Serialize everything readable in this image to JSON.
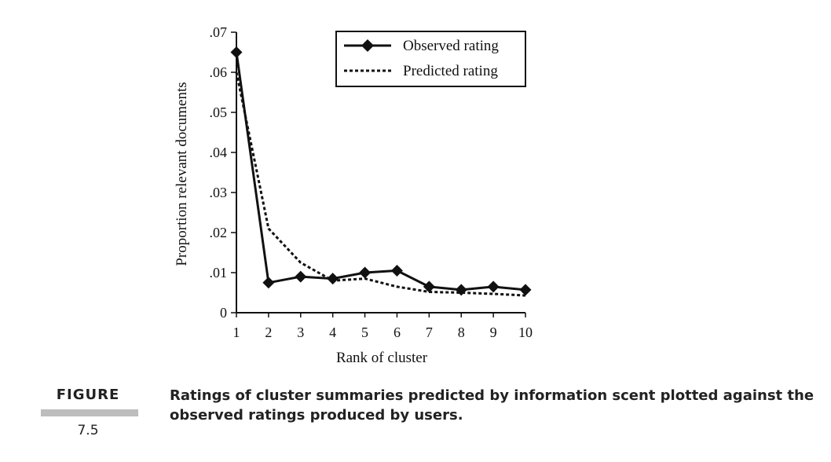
{
  "figure": {
    "label": "FIGURE",
    "number": "7.5",
    "caption_line1": "Ratings of cluster summaries predicted by information scent plotted against the",
    "caption_line2": "observed ratings produced by users."
  },
  "chart_data": {
    "type": "line",
    "xlabel": "Rank of cluster",
    "ylabel": "Proportion relevant documents",
    "x": [
      1,
      2,
      3,
      4,
      5,
      6,
      7,
      8,
      9,
      10
    ],
    "xlim": [
      1,
      10
    ],
    "ylim": [
      0,
      0.07
    ],
    "x_tick_labels": [
      "1",
      "2",
      "3",
      "4",
      "5",
      "6",
      "7",
      "8",
      "9",
      "10"
    ],
    "y_ticks": [
      0,
      0.01,
      0.02,
      0.03,
      0.04,
      0.05,
      0.06,
      0.07
    ],
    "y_tick_labels": [
      "0",
      ".01",
      ".02",
      ".03",
      ".04",
      ".05",
      ".06",
      ".07"
    ],
    "grid": false,
    "legend_position": "top-right",
    "series": [
      {
        "name": "Observed rating",
        "style": "solid",
        "marker": "diamond",
        "color": "#111111",
        "values": [
          0.065,
          0.0075,
          0.009,
          0.0085,
          0.01,
          0.0105,
          0.0065,
          0.0057,
          0.0065,
          0.0057
        ]
      },
      {
        "name": "Predicted rating",
        "style": "dotted",
        "marker": "none",
        "color": "#111111",
        "values": [
          0.06,
          0.021,
          0.0125,
          0.008,
          0.0085,
          0.0065,
          0.0052,
          0.005,
          0.0047,
          0.0043
        ]
      }
    ]
  }
}
